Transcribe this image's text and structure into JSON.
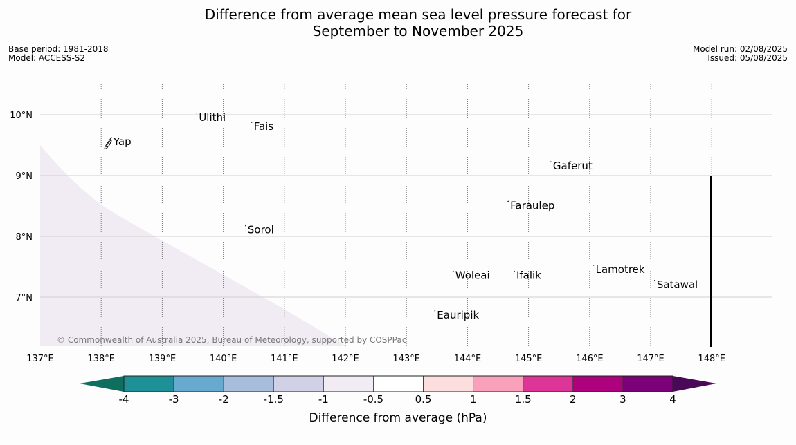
{
  "title": {
    "line1": "Difference from average mean sea level pressure forecast for",
    "line2": "September to November 2025"
  },
  "meta": {
    "base_period": "Base period: 1981-2018",
    "model": "Model: ACCESS-S2",
    "model_run": "Model run: 02/08/2025",
    "issued": "Issued: 05/08/2025"
  },
  "map": {
    "lon_range": [
      137,
      149
    ],
    "lat_range": [
      6.2,
      10.5
    ],
    "lon_ticks": [
      137,
      138,
      139,
      140,
      141,
      142,
      143,
      144,
      145,
      146,
      147,
      148
    ],
    "lon_labels": [
      "137°E",
      "138°E",
      "139°E",
      "140°E",
      "141°E",
      "142°E",
      "143°E",
      "144°E",
      "145°E",
      "146°E",
      "147°E",
      "148°E"
    ],
    "lat_ticks": [
      10,
      9,
      8,
      7
    ],
    "lat_labels": [
      "10°N",
      "9°N",
      "8°N",
      "7°N"
    ],
    "anomaly_region_color": "#f1ecf3",
    "places": [
      {
        "name": "Ulithi",
        "lon": 139.6,
        "lat": 9.9
      },
      {
        "name": "Fais",
        "lon": 140.5,
        "lat": 9.75
      },
      {
        "name": "Yap",
        "lon": 138.2,
        "lat": 9.5
      },
      {
        "name": "Gaferut",
        "lon": 145.4,
        "lat": 9.1
      },
      {
        "name": "Faraulep",
        "lon": 144.7,
        "lat": 8.45
      },
      {
        "name": "Sorol",
        "lon": 140.4,
        "lat": 8.05
      },
      {
        "name": "Woleai",
        "lon": 143.8,
        "lat": 7.3
      },
      {
        "name": "Ifalik",
        "lon": 144.8,
        "lat": 7.3
      },
      {
        "name": "Lamotrek",
        "lon": 146.1,
        "lat": 7.4
      },
      {
        "name": "Satawal",
        "lon": 147.1,
        "lat": 7.15
      },
      {
        "name": "Eauripik",
        "lon": 143.5,
        "lat": 6.65
      }
    ],
    "copyright": "© Commonwealth of Australia 2025, Bureau of Meteorology, supported by COSPPac"
  },
  "colorbar": {
    "title": "Difference from average (hPa)",
    "labels": [
      "-4",
      "-3",
      "-2",
      "-1.5",
      "-1",
      "-0.5",
      "0.5",
      "1",
      "1.5",
      "2",
      "3",
      "4"
    ],
    "under_color": "#0e6f5e",
    "over_color": "#4a0858",
    "colors": [
      "#1d9197",
      "#67a9cf",
      "#a6bddb",
      "#d0d1e6",
      "#f1ecf3",
      "#ffffff",
      "#fddede",
      "#f9a1bb",
      "#dd3497",
      "#ae017e",
      "#7a0177"
    ]
  }
}
